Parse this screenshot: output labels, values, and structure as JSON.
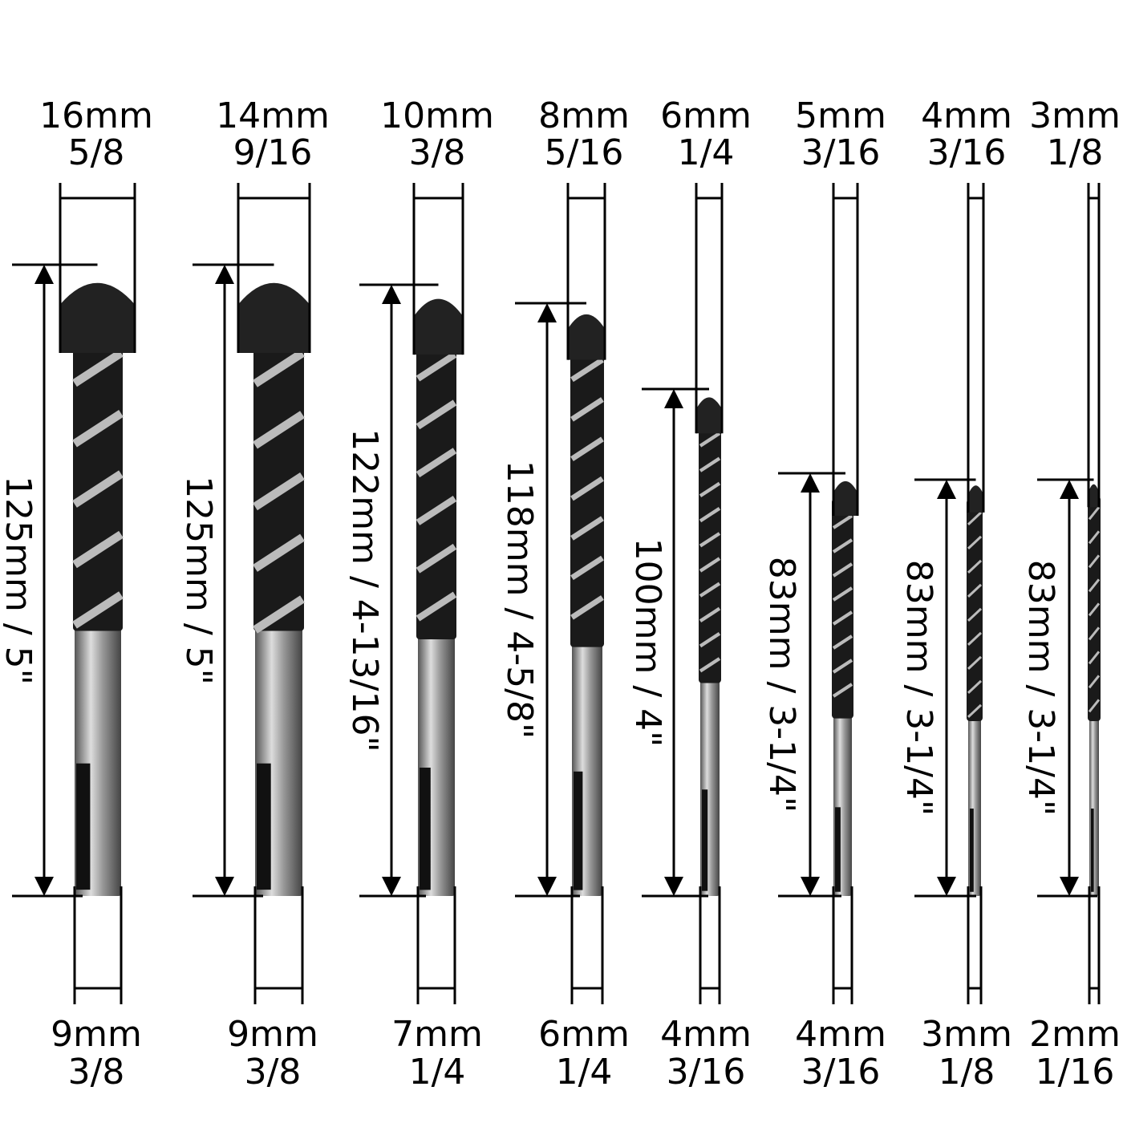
{
  "bits": [
    {
      "tip_mm": "16mm",
      "tip_inch": "5/8",
      "length": "125mm / 5\"",
      "shank_mm": "9mm",
      "shank_inch": "3/8"
    },
    {
      "tip_mm": "14mm",
      "tip_inch": "9/16",
      "length": "125mm / 5\"",
      "shank_mm": "9mm",
      "shank_inch": "3/8"
    },
    {
      "tip_mm": "10mm",
      "tip_inch": "3/8",
      "length": "122mm / 4-13/16\"",
      "shank_mm": "7mm",
      "shank_inch": "1/4"
    },
    {
      "tip_mm": "8mm",
      "tip_inch": "5/16",
      "length": "118mm / 4-5/8\"",
      "shank_mm": "6mm",
      "shank_inch": "1/4"
    },
    {
      "tip_mm": "6mm",
      "tip_inch": "1/4",
      "length": "100mm / 4\"",
      "shank_mm": "4mm",
      "shank_inch": "3/16"
    },
    {
      "tip_mm": "5mm",
      "tip_inch": "3/16",
      "length": "83mm / 3-1/4\"",
      "shank_mm": "4mm",
      "shank_inch": "3/16"
    },
    {
      "tip_mm": "4mm",
      "tip_inch": "3/16",
      "length": "83mm / 3-1/4\"",
      "shank_mm": "3mm",
      "shank_inch": "1/8"
    },
    {
      "tip_mm": "3mm",
      "tip_inch": "1/8",
      "length": "83mm / 3-1/4\"",
      "shank_mm": "2mm",
      "shank_inch": "1/16"
    }
  ]
}
